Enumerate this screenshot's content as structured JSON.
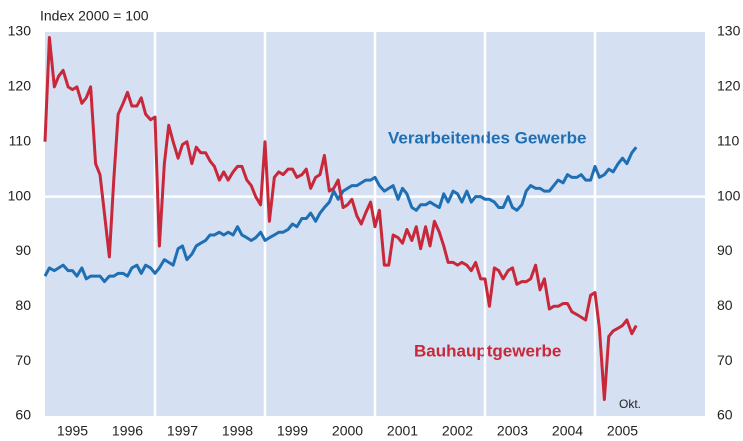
{
  "chart_data": {
    "type": "line",
    "subtitle": "Index 2000 = 100",
    "x": [
      1995,
      1995.08,
      1995.17,
      1995.25,
      1995.33,
      1995.42,
      1995.5,
      1995.58,
      1995.67,
      1995.75,
      1995.83,
      1995.92,
      1996,
      1996.08,
      1996.17,
      1996.25,
      1996.33,
      1996.42,
      1996.5,
      1996.58,
      1996.67,
      1996.75,
      1996.83,
      1996.92,
      1997,
      1997.08,
      1997.17,
      1997.25,
      1997.33,
      1997.42,
      1997.5,
      1997.58,
      1997.67,
      1997.75,
      1997.83,
      1997.92,
      1998,
      1998.08,
      1998.17,
      1998.25,
      1998.33,
      1998.42,
      1998.5,
      1998.58,
      1998.67,
      1998.75,
      1998.83,
      1998.92,
      1999,
      1999.08,
      1999.17,
      1999.25,
      1999.33,
      1999.42,
      1999.5,
      1999.58,
      1999.67,
      1999.75,
      1999.83,
      1999.92,
      2000,
      2000.08,
      2000.17,
      2000.25,
      2000.33,
      2000.42,
      2000.5,
      2000.58,
      2000.67,
      2000.75,
      2000.83,
      2000.92,
      2001,
      2001.08,
      2001.17,
      2001.25,
      2001.33,
      2001.42,
      2001.5,
      2001.58,
      2001.67,
      2001.75,
      2001.83,
      2001.92,
      2002,
      2002.08,
      2002.17,
      2002.25,
      2002.33,
      2002.42,
      2002.5,
      2002.58,
      2002.67,
      2002.75,
      2002.83,
      2002.92,
      2003,
      2003.08,
      2003.17,
      2003.25,
      2003.33,
      2003.42,
      2003.5,
      2003.58,
      2003.67,
      2003.75,
      2003.83,
      2003.92,
      2004,
      2004.08,
      2004.17,
      2004.25,
      2004.33,
      2004.42,
      2004.5,
      2004.58,
      2004.67,
      2004.75,
      2004.83,
      2004.92,
      2005,
      2005.08,
      2005.17,
      2005.25,
      2005.33,
      2005.42,
      2005.5,
      2005.58,
      2005.67,
      2005.75
    ],
    "series": [
      {
        "name": "Verarbeitendes Gewerbe",
        "color": "#1f6fb4",
        "values": [
          85.5,
          87,
          86.5,
          87,
          87.5,
          86.5,
          86.5,
          85.5,
          87,
          85,
          85.5,
          85.5,
          85.5,
          84.5,
          85.5,
          85.5,
          86,
          86,
          85.5,
          87,
          87.5,
          86,
          87.5,
          87,
          86,
          87,
          88.5,
          88,
          87.5,
          90.5,
          91,
          88.5,
          89.5,
          91,
          91.5,
          92,
          93,
          93,
          93.5,
          93,
          93.5,
          93,
          94.5,
          93,
          92.5,
          92,
          92.5,
          93.5,
          92,
          92.5,
          93,
          93.5,
          93.5,
          94,
          95,
          94.5,
          96,
          96,
          97,
          95.5,
          97,
          98,
          99,
          101,
          99.5,
          101,
          101.5,
          102,
          102,
          102.5,
          103,
          103,
          103.5,
          102,
          101,
          101.5,
          102,
          99.5,
          101.5,
          100.5,
          98,
          97.5,
          98.5,
          98.5,
          99,
          98.5,
          98,
          100.5,
          99,
          101,
          100.5,
          99,
          101,
          99,
          100,
          100,
          99.5,
          99.5,
          99,
          98,
          98,
          100,
          98,
          97.5,
          98.5,
          101,
          102,
          101.5,
          101.5,
          101,
          101,
          102,
          103,
          102.5,
          104,
          103.5,
          103.5,
          104,
          103,
          103,
          105.5,
          103.5,
          104,
          105,
          104.5,
          106,
          107,
          106,
          108,
          109
        ]
      },
      {
        "name": "Bauhauptgewerbe",
        "color": "#c8283a",
        "values": [
          110,
          129,
          120,
          122,
          123,
          120,
          119.5,
          120,
          117,
          118,
          120,
          106,
          104,
          97,
          89,
          103,
          115,
          117,
          119,
          116.5,
          116.5,
          118,
          115,
          114,
          114.5,
          91,
          106,
          113,
          110,
          107,
          109.5,
          110,
          106,
          109,
          108,
          108,
          106.5,
          105.5,
          103,
          104.5,
          103,
          104.5,
          105.5,
          105.5,
          103,
          102,
          100,
          98.5,
          110,
          95.5,
          103.5,
          104.5,
          104,
          105,
          105,
          103.5,
          104,
          105,
          101.5,
          103.5,
          104,
          107.5,
          101,
          101.5,
          103,
          98,
          98.5,
          99.5,
          96.5,
          95,
          97,
          99,
          94.5,
          97.5,
          87.5,
          87.5,
          93,
          92.5,
          91.5,
          94,
          92,
          94.5,
          90.5,
          94.5,
          91,
          95.5,
          93.5,
          91,
          88,
          88,
          87.5,
          88,
          87.5,
          86.5,
          88,
          85,
          85,
          80,
          87,
          86.5,
          85,
          86.5,
          87,
          84,
          84.5,
          84.5,
          85,
          87.5,
          83,
          85,
          79.5,
          80,
          80,
          80.5,
          80.5,
          79,
          78.5,
          78,
          77.5,
          82,
          82.5,
          76,
          63,
          74.5,
          75.5,
          76,
          76.5,
          77.5,
          75,
          76.5
        ]
      }
    ],
    "annotations": [
      "Okt."
    ],
    "xlim": [
      1995,
      2007
    ],
    "xticks": [
      {
        "value": 1995.5,
        "label": "1995"
      },
      {
        "value": 1996.5,
        "label": "1996"
      },
      {
        "value": 1997.5,
        "label": "1997"
      },
      {
        "value": 1998.5,
        "label": "1998"
      },
      {
        "value": 1999.5,
        "label": "1999"
      },
      {
        "value": 2000.5,
        "label": "2000"
      },
      {
        "value": 2001.5,
        "label": "2001"
      },
      {
        "value": 2002.5,
        "label": "2002"
      },
      {
        "value": 2003.5,
        "label": "2003"
      },
      {
        "value": 2004.5,
        "label": "2004"
      },
      {
        "value": 2005.5,
        "label": "2005"
      }
    ],
    "xgrid": [
      1997,
      1999,
      2001,
      2003,
      2005
    ],
    "hline": 100,
    "ylim": [
      60,
      130
    ],
    "yticks": [
      60,
      70,
      80,
      90,
      100,
      110,
      120,
      130
    ]
  }
}
